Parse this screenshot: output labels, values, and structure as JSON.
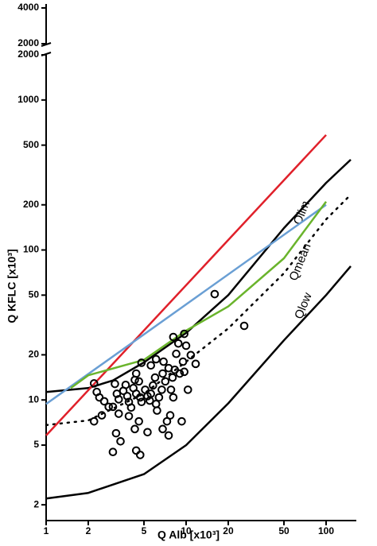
{
  "chart_data": {
    "type": "scatter",
    "x_label": "Q Alb [x10³]",
    "y_label": "Q KFLC [x10³]",
    "x_scale": "log",
    "y_scale": "log",
    "xlim": [
      1,
      150
    ],
    "xticks": [
      1,
      2,
      5,
      10,
      20,
      50,
      100
    ],
    "ylim": [
      1.57,
      2000
    ],
    "yticks": [
      2,
      5,
      10,
      20,
      50,
      100,
      200,
      500,
      1000,
      2000
    ],
    "upper_ylim": [
      2000,
      4000
    ],
    "upper_yticks": [
      2000,
      4000
    ],
    "point_color": "#000000",
    "points": {
      "x": [
        2.2,
        2.3,
        2.4,
        2.6,
        2.8,
        2.5,
        2.2,
        3.1,
        3.2,
        3.0,
        3.3,
        3.56,
        3.7,
        3.8,
        3.9,
        4.05,
        4.2,
        4.3,
        4.4,
        4.6,
        4.4,
        4.7,
        4.8,
        5.1,
        5.3,
        5.5,
        5.6,
        5.8,
        6.0,
        6.1,
        6.2,
        6.4,
        6.7,
        6.8,
        6.9,
        7.1,
        7.5,
        7.8,
        8.0,
        8.3,
        8.5,
        8.8,
        9.0,
        9.5,
        9.7,
        10,
        10.3,
        10.8,
        11.7,
        8.1,
        7.7,
        7.3,
        6.8,
        5.3,
        4.6,
        3.9,
        3.3,
        3.16,
        3.4,
        3.0,
        4.3,
        4.4,
        4.7,
        7.5,
        9.3,
        16.0,
        26.0,
        8.1,
        9.7,
        6.1,
        5.6,
        4.8
      ],
      "values": [
        12.9,
        11.3,
        10.4,
        9.8,
        9.0,
        7.9,
        7.2,
        12.8,
        11.0,
        9.0,
        10.1,
        11.5,
        12.6,
        10.6,
        9.7,
        8.9,
        12.0,
        13.6,
        15.0,
        13.3,
        11.0,
        10.4,
        9.7,
        11.7,
        10.6,
        9.9,
        11.0,
        12.5,
        14.1,
        9.4,
        8.5,
        10.4,
        11.7,
        15.0,
        18.0,
        13.3,
        16.3,
        11.7,
        14.1,
        15.9,
        20.3,
        23.8,
        15.0,
        18.0,
        15.4,
        23.0,
        11.7,
        19.9,
        17.4,
        10.4,
        7.9,
        7.2,
        6.4,
        6.1,
        7.2,
        7.8,
        8.1,
        6.0,
        5.3,
        4.5,
        6.4,
        4.6,
        4.3,
        5.8,
        7.2,
        50.8,
        31.2,
        26.3,
        27.6,
        18.7,
        17.0,
        17.7
      ]
    },
    "series": [
      {
        "name": "Qlim",
        "color": "#000000",
        "dash": false,
        "x": [
          1,
          2,
          3,
          5,
          10,
          20,
          50,
          100,
          150
        ],
        "values": [
          11.3,
          12,
          13.5,
          17.8,
          28,
          50,
          140,
          280,
          400
        ]
      },
      {
        "name": "Qmean",
        "color": "#000000",
        "dash": true,
        "x": [
          1,
          2,
          5,
          10,
          20,
          50,
          100,
          150
        ],
        "values": [
          6.8,
          7.3,
          11,
          18,
          30,
          70,
          160,
          234
        ]
      },
      {
        "name": "Qlow",
        "color": "#000000",
        "dash": false,
        "x": [
          1,
          2,
          5,
          10,
          20,
          50,
          100,
          150
        ],
        "values": [
          2.2,
          2.4,
          3.2,
          5,
          9.5,
          25,
          50,
          78
        ]
      },
      {
        "color": "#e0202a",
        "dash": false,
        "x": [
          1,
          100
        ],
        "values": [
          5.8,
          585
        ]
      },
      {
        "color": "#6a9fd4",
        "dash": false,
        "x": [
          1,
          100
        ],
        "values": [
          9.4,
          200
        ]
      },
      {
        "color": "#6ab42c",
        "dash": false,
        "x": [
          1.5,
          2,
          5,
          10,
          20,
          50,
          100
        ],
        "values": [
          12,
          14.6,
          18.5,
          29,
          42,
          88,
          210
        ]
      }
    ]
  }
}
